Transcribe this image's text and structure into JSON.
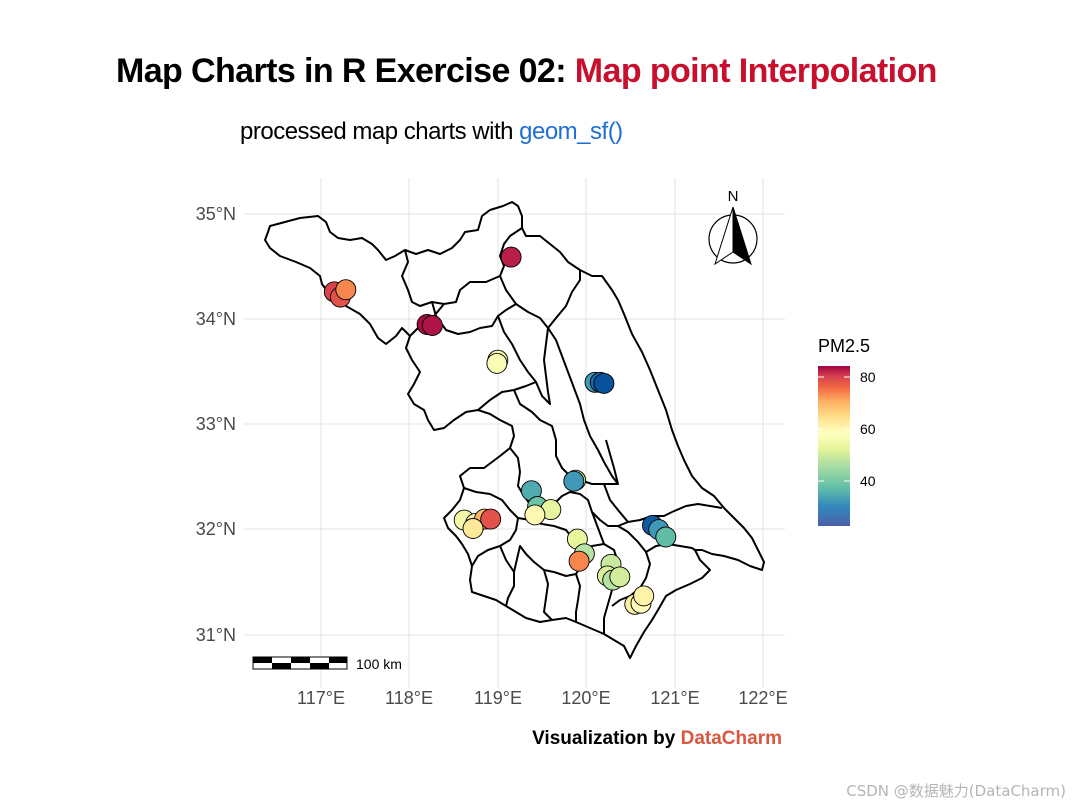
{
  "header": {
    "title_main": "Map Charts in R Exercise 02:",
    "title_highlight": "Map point Interpolation",
    "subtitle_main": "processed map charts with",
    "subtitle_code": "geom_sf()"
  },
  "caption": {
    "prefix": "Visualization by",
    "brand": "DataCharm"
  },
  "watermark": "CSDN @数据魅力(DataCharm)",
  "axes": {
    "x_ticks": [
      "117°E",
      "118°E",
      "119°E",
      "120°E",
      "121°E",
      "122°E"
    ],
    "y_ticks": [
      "35°N",
      "34°N",
      "33°N",
      "32°N",
      "31°N"
    ]
  },
  "legend": {
    "title": "PM2.5",
    "ticks": [
      "80",
      "60",
      "40"
    ]
  },
  "scale_bar": {
    "label": "100 km"
  },
  "north_arrow": {
    "label": "N"
  },
  "colors": {
    "title_highlight": "#c8102e",
    "code": "#1f6fd6",
    "brand": "#d9573f",
    "grid": "#e3e3e3",
    "boundary": "#000000",
    "scale": [
      "#08519c",
      "#3288bd",
      "#66c2a5",
      "#abdda4",
      "#e6f598",
      "#ffffbf",
      "#fee08b",
      "#fdae61",
      "#f46d43",
      "#d53e4f",
      "#9e0142"
    ]
  },
  "chart_data": {
    "type": "scatter",
    "x_unit": "longitude (°E)",
    "y_unit": "latitude (°N)",
    "value_name": "PM2.5",
    "value_range": [
      22,
      85
    ],
    "points": [
      {
        "lon": 119.15,
        "lat": 34.59,
        "pm25": 82
      },
      {
        "lon": 117.15,
        "lat": 34.26,
        "pm25": 78
      },
      {
        "lon": 117.22,
        "lat": 34.21,
        "pm25": 76
      },
      {
        "lon": 117.28,
        "lat": 34.28,
        "pm25": 70
      },
      {
        "lon": 118.2,
        "lat": 33.95,
        "pm25": 84
      },
      {
        "lon": 118.26,
        "lat": 33.94,
        "pm25": 83
      },
      {
        "lon": 119.0,
        "lat": 33.61,
        "pm25": 50
      },
      {
        "lon": 118.99,
        "lat": 33.58,
        "pm25": 52
      },
      {
        "lon": 120.1,
        "lat": 33.4,
        "pm25": 30
      },
      {
        "lon": 120.16,
        "lat": 33.4,
        "pm25": 25
      },
      {
        "lon": 120.2,
        "lat": 33.39,
        "pm25": 22
      },
      {
        "lon": 119.38,
        "lat": 32.37,
        "pm25": 32
      },
      {
        "lon": 119.88,
        "lat": 32.47,
        "pm25": 45
      },
      {
        "lon": 119.86,
        "lat": 32.46,
        "pm25": 30
      },
      {
        "lon": 119.45,
        "lat": 32.22,
        "pm25": 35
      },
      {
        "lon": 119.6,
        "lat": 32.19,
        "pm25": 48
      },
      {
        "lon": 119.42,
        "lat": 32.14,
        "pm25": 55
      },
      {
        "lon": 118.62,
        "lat": 32.09,
        "pm25": 50
      },
      {
        "lon": 118.75,
        "lat": 32.06,
        "pm25": 56
      },
      {
        "lon": 118.85,
        "lat": 32.1,
        "pm25": 65
      },
      {
        "lon": 118.72,
        "lat": 32.01,
        "pm25": 58
      },
      {
        "lon": 118.92,
        "lat": 32.1,
        "pm25": 76
      },
      {
        "lon": 120.75,
        "lat": 32.04,
        "pm25": 23
      },
      {
        "lon": 120.82,
        "lat": 32.0,
        "pm25": 30
      },
      {
        "lon": 120.9,
        "lat": 31.93,
        "pm25": 34
      },
      {
        "lon": 119.9,
        "lat": 31.91,
        "pm25": 48
      },
      {
        "lon": 119.98,
        "lat": 31.77,
        "pm25": 42
      },
      {
        "lon": 119.92,
        "lat": 31.7,
        "pm25": 70
      },
      {
        "lon": 120.28,
        "lat": 31.67,
        "pm25": 44
      },
      {
        "lon": 120.24,
        "lat": 31.56,
        "pm25": 46
      },
      {
        "lon": 120.3,
        "lat": 31.52,
        "pm25": 42
      },
      {
        "lon": 120.38,
        "lat": 31.55,
        "pm25": 45
      },
      {
        "lon": 120.55,
        "lat": 31.29,
        "pm25": 57
      },
      {
        "lon": 120.62,
        "lat": 31.3,
        "pm25": 54
      },
      {
        "lon": 120.65,
        "lat": 31.37,
        "pm25": 56
      }
    ]
  }
}
